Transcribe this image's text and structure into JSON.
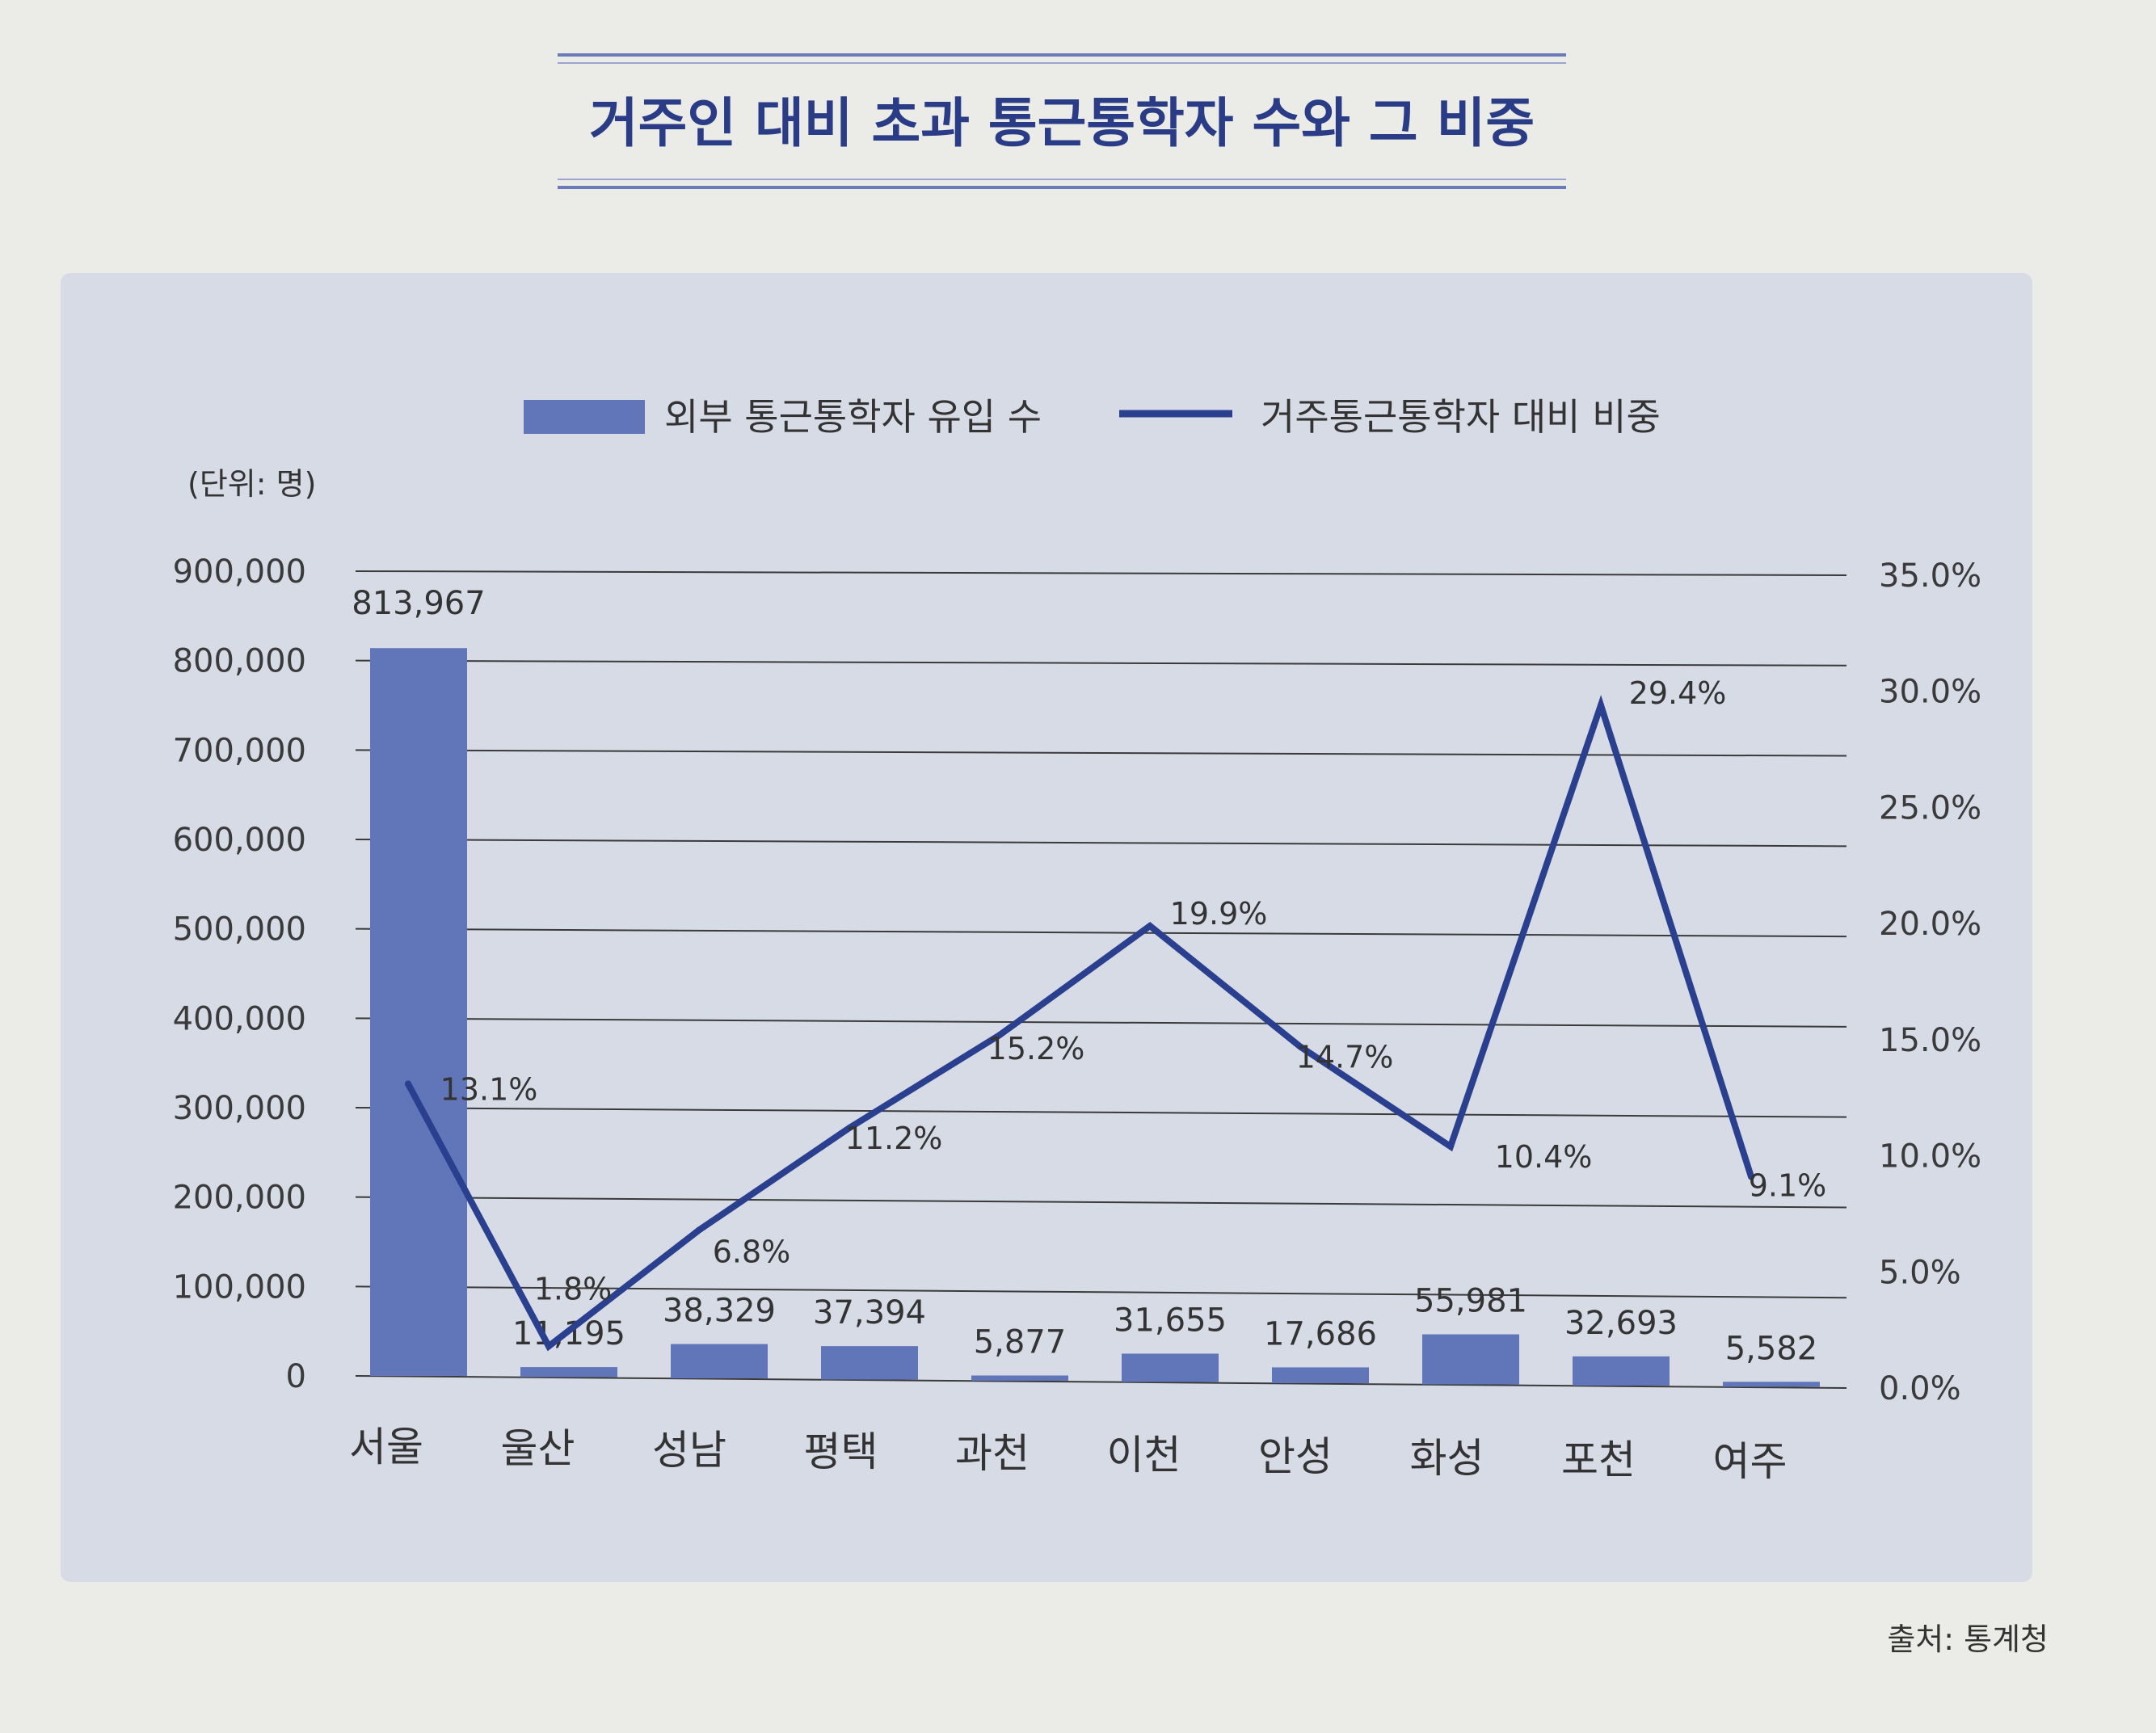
{
  "chart_data": {
    "type": "bar+line",
    "title": "거주인 대비 초과 통근통학자 수와 그 비중",
    "unit_label": "(단위: 명)",
    "source": "출처: 통계청",
    "legend": {
      "bar": "외부 통근통학자 유입 수",
      "line": "거주통근통학자 대비 비중"
    },
    "categories": [
      "서울",
      "울산",
      "성남",
      "평택",
      "과천",
      "이천",
      "안성",
      "화성",
      "포천",
      "여주"
    ],
    "bar_values": [
      813967,
      11195,
      38329,
      37394,
      5877,
      31655,
      17686,
      55981,
      32693,
      5582
    ],
    "bar_labels": [
      "813,967",
      "11,195",
      "38,329",
      "37,394",
      "5,877",
      "31,655",
      "17,686",
      "55,981",
      "32,693",
      "5,582"
    ],
    "line_values": [
      13.1,
      1.8,
      6.8,
      11.2,
      15.2,
      19.9,
      14.7,
      10.4,
      29.4,
      9.1
    ],
    "line_labels": [
      "13.1%",
      "1.8%",
      "6.8%",
      "11.2%",
      "15.2%",
      "19.9%",
      "14.7%",
      "10.4%",
      "29.4%",
      "9.1%"
    ],
    "y_left": {
      "range": [
        0,
        900000
      ],
      "ticks": [
        "0",
        "100,000",
        "200,000",
        "300,000",
        "400,000",
        "500,000",
        "600,000",
        "700,000",
        "800,000",
        "900,000"
      ]
    },
    "y_right": {
      "range": [
        0,
        35
      ],
      "ticks": [
        "0.0%",
        "5.0%",
        "10.0%",
        "15.0%",
        "20.0%",
        "25.0%",
        "30.0%",
        "35.0%"
      ]
    },
    "colors": {
      "bar": "#6176b8",
      "line": "#2b3f8f",
      "title": "#2a3c86",
      "panel": "#d6dbe6"
    }
  }
}
